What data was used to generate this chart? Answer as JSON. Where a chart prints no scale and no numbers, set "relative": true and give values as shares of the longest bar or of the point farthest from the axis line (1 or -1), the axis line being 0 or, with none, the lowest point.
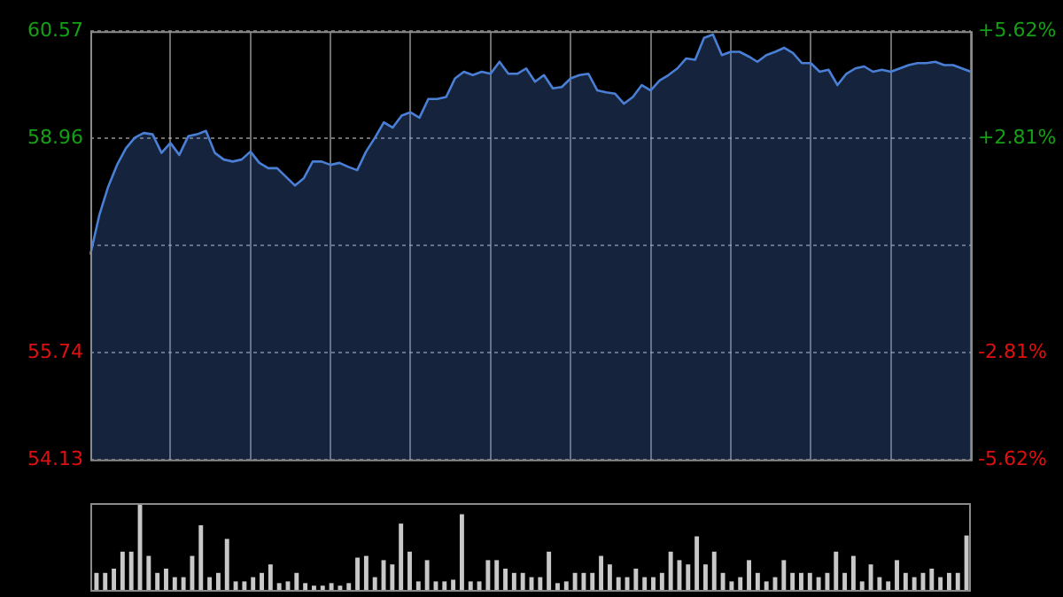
{
  "chart_data": [
    {
      "type": "area",
      "categories": [
        null,
        null,
        null,
        null,
        null,
        null,
        null,
        null,
        null,
        null,
        null,
        null,
        null,
        null,
        null,
        null,
        null,
        null,
        null,
        null,
        null,
        null,
        null,
        null,
        null,
        null,
        null,
        null,
        null,
        null,
        null,
        null,
        null,
        null,
        null,
        null,
        null,
        null,
        null,
        null,
        null,
        null,
        null,
        null,
        null,
        null,
        null,
        null,
        null,
        null,
        null,
        null,
        null,
        null,
        null,
        null,
        null,
        null,
        null,
        null,
        null,
        null,
        null,
        null,
        null,
        null,
        null,
        null,
        null,
        null,
        null,
        null,
        null,
        null,
        null,
        null,
        null,
        null,
        null,
        null,
        null,
        null,
        null,
        null,
        null,
        null,
        null,
        null,
        null,
        null,
        null,
        null,
        null,
        null,
        null,
        null,
        null,
        null,
        null,
        null
      ],
      "series": [
        {
          "color": "#4a7fd6",
          "values": [
            57.21,
            57.8,
            58.23,
            58.56,
            58.81,
            58.97,
            59.04,
            59.02,
            58.74,
            58.89,
            58.71,
            58.99,
            59.02,
            59.07,
            58.74,
            58.64,
            58.61,
            58.64,
            58.76,
            58.59,
            58.51,
            58.51,
            58.38,
            58.25,
            58.36,
            58.61,
            58.61,
            58.56,
            58.59,
            58.53,
            58.48,
            58.76,
            58.97,
            59.2,
            59.12,
            59.3,
            59.35,
            59.27,
            59.55,
            59.55,
            59.58,
            59.86,
            59.96,
            59.91,
            59.96,
            59.93,
            60.11,
            59.93,
            59.93,
            60.01,
            59.81,
            59.91,
            59.71,
            59.73,
            59.86,
            59.91,
            59.93,
            59.68,
            59.65,
            59.63,
            59.48,
            59.58,
            59.76,
            59.68,
            59.83,
            59.91,
            60.01,
            60.16,
            60.14,
            60.47,
            60.52,
            60.21,
            60.26,
            60.26,
            60.19,
            60.11,
            60.21,
            60.26,
            60.32,
            60.24,
            60.09,
            60.09,
            59.96,
            59.99,
            59.76,
            59.93,
            60.01,
            60.04,
            59.96,
            59.99,
            59.96,
            60.01,
            60.06,
            60.09,
            60.09,
            60.11,
            60.06,
            60.06,
            60.01,
            59.96
          ]
        }
      ],
      "ylim": [
        54.13,
        60.57
      ],
      "yticks": [
        54.13,
        55.74,
        {
          "value": 57.35,
          "label": null
        },
        58.96,
        60.57
      ],
      "y2lim": [
        -5.62,
        5.62
      ],
      "y2ticks": [
        {
          "value": -5.62,
          "label": "-5.62%"
        },
        {
          "value": -2.81,
          "label": "-2.81%"
        },
        {
          "value": 0,
          "label": null
        },
        {
          "value": 2.81,
          "label": "+2.81%"
        },
        {
          "value": 5.62,
          "label": "+5.62%"
        }
      ],
      "grid": true,
      "tick_labels": "y"
    },
    {
      "type": "bar",
      "relative": true,
      "tick_labels": false,
      "color": "#c8c8c8",
      "categories": [
        null,
        null,
        null,
        null,
        null,
        null,
        null,
        null,
        null,
        null,
        null,
        null,
        null,
        null,
        null,
        null,
        null,
        null,
        null,
        null,
        null,
        null,
        null,
        null,
        null,
        null,
        null,
        null,
        null,
        null,
        null,
        null,
        null,
        null,
        null,
        null,
        null,
        null,
        null,
        null,
        null,
        null,
        null,
        null,
        null,
        null,
        null,
        null,
        null,
        null,
        null,
        null,
        null,
        null,
        null,
        null,
        null,
        null,
        null,
        null,
        null,
        null,
        null,
        null,
        null,
        null,
        null,
        null,
        null,
        null,
        null,
        null,
        null,
        null,
        null,
        null,
        null,
        null,
        null,
        null,
        null,
        null,
        null,
        null,
        null,
        null,
        null,
        null,
        null,
        null,
        null,
        null,
        null,
        null,
        null,
        null,
        null,
        null,
        null,
        null,
        null
      ],
      "values": [
        0.2,
        0.2,
        0.25,
        0.45,
        0.45,
        1.0,
        0.4,
        0.2,
        0.25,
        0.15,
        0.15,
        0.4,
        0.76,
        0.15,
        0.2,
        0.6,
        0.1,
        0.1,
        0.15,
        0.2,
        0.3,
        0.08,
        0.1,
        0.2,
        0.08,
        0.05,
        0.05,
        0.08,
        0.05,
        0.08,
        0.38,
        0.4,
        0.15,
        0.35,
        0.3,
        0.78,
        0.45,
        0.1,
        0.35,
        0.1,
        0.1,
        0.12,
        0.89,
        0.1,
        0.1,
        0.35,
        0.35,
        0.25,
        0.2,
        0.2,
        0.15,
        0.15,
        0.45,
        0.08,
        0.1,
        0.2,
        0.2,
        0.2,
        0.4,
        0.3,
        0.15,
        0.15,
        0.25,
        0.15,
        0.15,
        0.2,
        0.45,
        0.35,
        0.3,
        0.63,
        0.3,
        0.45,
        0.2,
        0.1,
        0.15,
        0.35,
        0.2,
        0.1,
        0.15,
        0.35,
        0.2,
        0.2,
        0.2,
        0.15,
        0.2,
        0.45,
        0.2,
        0.4,
        0.1,
        0.3,
        0.15,
        0.1,
        0.35,
        0.2,
        0.15,
        0.2,
        0.25,
        0.15,
        0.2,
        0.2,
        0.64
      ]
    }
  ]
}
